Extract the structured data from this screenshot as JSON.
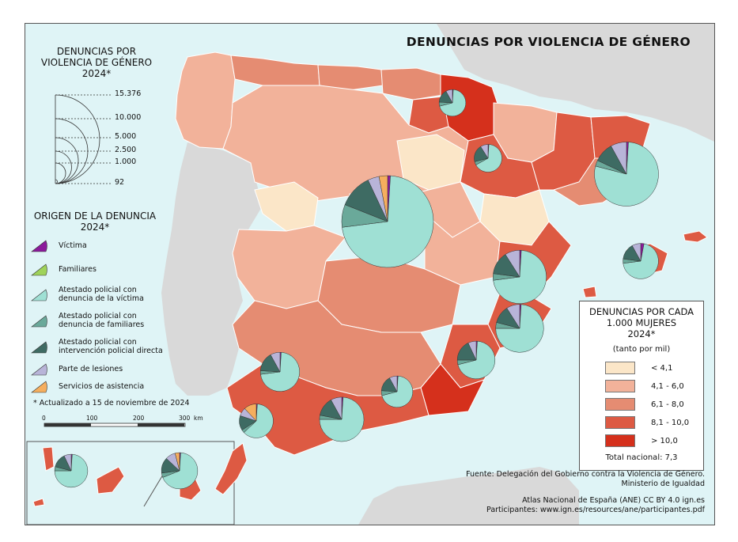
{
  "title": "DENUNCIAS POR VIOLENCIA DE GÉNERO",
  "size_legend": {
    "title_line1": "DENUNCIAS POR",
    "title_line2": "VIOLENCIA DE GÉNERO",
    "title_line3": "2024*",
    "values": [
      "15.376",
      "10.000",
      "5.000",
      "2.500",
      "1.000",
      "92"
    ]
  },
  "origin_legend": {
    "title_line1": "ORIGEN DE LA DENUNCIA",
    "title_line2": "2024*",
    "items": [
      {
        "label1": "Víctima",
        "label2": "",
        "color": "#8b1a9b"
      },
      {
        "label1": "Familiares",
        "label2": "",
        "color": "#9fd35a"
      },
      {
        "label1": "Atestado policial con",
        "label2": "denuncia de la víctima",
        "color": "#9fe0d4"
      },
      {
        "label1": "Atestado policial con",
        "label2": "denuncia de familiares",
        "color": "#6aa99a"
      },
      {
        "label1": "Atestado policial con",
        "label2": "intervención policial directa",
        "color": "#3e6b63"
      },
      {
        "label1": "Parte de lesiones",
        "label2": "",
        "color": "#b8b4d8"
      },
      {
        "label1": "Servicios de asistencia",
        "label2": "",
        "color": "#f5ae5e"
      }
    ]
  },
  "note": "* Actualizado a 15 de noviembre de 2024",
  "scale": {
    "ticks": [
      "0",
      "100",
      "200",
      "300"
    ],
    "unit": "km"
  },
  "rate_legend": {
    "title_line1": "DENUNCIAS POR CADA",
    "title_line2": "1.000 MUJERES",
    "title_line3": "2024*",
    "subtitle": "(tanto por mil)",
    "classes": [
      {
        "label": "< 4,1",
        "color": "#fbe6c8"
      },
      {
        "label": "4,1 - 6,0",
        "color": "#f2b29a"
      },
      {
        "label": "6,1 - 8,0",
        "color": "#e58c72"
      },
      {
        "label": "8,1 - 10,0",
        "color": "#dd5a43"
      },
      {
        "label": "> 10,0",
        "color": "#d5301c"
      }
    ],
    "total": "Total nacional: 7,3"
  },
  "credits": {
    "source1": "Fuente: Delegación del Gobierno contra la Violencia de Género.",
    "source2": "Ministerio de Igualdad",
    "atlas": "Atlas Nacional de España (ANE) CC BY 4.0 ign.es",
    "participants": "Participantes: www.ign.es/resources/ane/participantes.pdf"
  },
  "colors": {
    "sea": "#dff4f6",
    "land_foreign": "#d9d9d9",
    "border": "#ffffff",
    "outline": "#555555"
  },
  "regions": [
    {
      "name": "Galicia-Lugo",
      "rate_class": 3
    },
    {
      "name": "Galicia-Coruña",
      "rate_class": 3
    },
    {
      "name": "Asturias",
      "rate_class": 3
    },
    {
      "name": "Cantabria",
      "rate_class": 3
    },
    {
      "name": "Vizcaya",
      "rate_class": 3
    },
    {
      "name": "Navarra",
      "rate_class": 5
    },
    {
      "name": "La Rioja",
      "rate_class": 5
    },
    {
      "name": "Huesca",
      "rate_class": 2
    },
    {
      "name": "Lleida",
      "rate_class": 4
    },
    {
      "name": "Girona",
      "rate_class": 4
    },
    {
      "name": "Barcelona",
      "rate_class": 3
    },
    {
      "name": "Soria",
      "rate_class": 1
    },
    {
      "name": "Zamora",
      "rate_class": 1
    },
    {
      "name": "Teruel",
      "rate_class": 1
    },
    {
      "name": "Madrid",
      "rate_class": 3
    },
    {
      "name": "Valencia",
      "rate_class": 4
    },
    {
      "name": "Alicante",
      "rate_class": 4
    },
    {
      "name": "Murcia",
      "rate_class": 4
    },
    {
      "name": "Almería",
      "rate_class": 5
    },
    {
      "name": "Andalucía occidental",
      "rate_class": 4
    },
    {
      "name": "Castilla-La Mancha",
      "rate_class": 3
    },
    {
      "name": "Extremadura",
      "rate_class": 2
    },
    {
      "name": "Castilla y León",
      "rate_class": 2
    },
    {
      "name": "Baleares",
      "rate_class": 4
    },
    {
      "name": "Canarias",
      "rate_class": 4
    }
  ],
  "pies": [
    {
      "name": "Madrid",
      "total": 15376,
      "shares": [
        0.01,
        0,
        0.72,
        0.08,
        0.12,
        0.04,
        0.03
      ]
    },
    {
      "name": "Barcelona",
      "total": 7500,
      "shares": [
        0.01,
        0,
        0.78,
        0.03,
        0.1,
        0.08,
        0
      ]
    },
    {
      "name": "Valencia",
      "total": 5200,
      "shares": [
        0.01,
        0,
        0.72,
        0.04,
        0.14,
        0.09,
        0
      ]
    },
    {
      "name": "Alicante",
      "total": 4200,
      "shares": [
        0.01,
        0,
        0.74,
        0.04,
        0.12,
        0.09,
        0
      ]
    },
    {
      "name": "Sevilla",
      "total": 2800,
      "shares": [
        0.01,
        0,
        0.72,
        0.03,
        0.16,
        0.08,
        0
      ]
    },
    {
      "name": "Málaga",
      "total": 3600,
      "shares": [
        0.01,
        0,
        0.74,
        0.03,
        0.14,
        0.08,
        0
      ]
    },
    {
      "name": "Murcia",
      "total": 2600,
      "shares": [
        0.01,
        0,
        0.7,
        0.04,
        0.18,
        0.07,
        0
      ]
    },
    {
      "name": "Granada",
      "total": 1800,
      "shares": [
        0.01,
        0,
        0.7,
        0.05,
        0.16,
        0.08,
        0
      ]
    },
    {
      "name": "Cádiz",
      "total": 2100,
      "shares": [
        0.01,
        0,
        0.62,
        0.03,
        0.14,
        0.08,
        0.12
      ]
    },
    {
      "name": "Baleares",
      "total": 2300,
      "shares": [
        0.03,
        0,
        0.7,
        0.04,
        0.15,
        0.08,
        0
      ]
    },
    {
      "name": "Las Palmas",
      "total": 2400,
      "shares": [
        0.01,
        0,
        0.68,
        0.04,
        0.14,
        0.09,
        0.04
      ]
    },
    {
      "name": "Santa Cruz de Tenerife",
      "total": 2000,
      "shares": [
        0.01,
        0,
        0.74,
        0.04,
        0.14,
        0.07,
        0
      ]
    },
    {
      "name": "Vizcaya",
      "total": 1300,
      "shares": [
        0.01,
        0,
        0.7,
        0.05,
        0.16,
        0.08,
        0
      ]
    },
    {
      "name": "Zaragoza",
      "total": 1400,
      "shares": [
        0.01,
        0,
        0.66,
        0.04,
        0.2,
        0.09,
        0
      ]
    }
  ]
}
